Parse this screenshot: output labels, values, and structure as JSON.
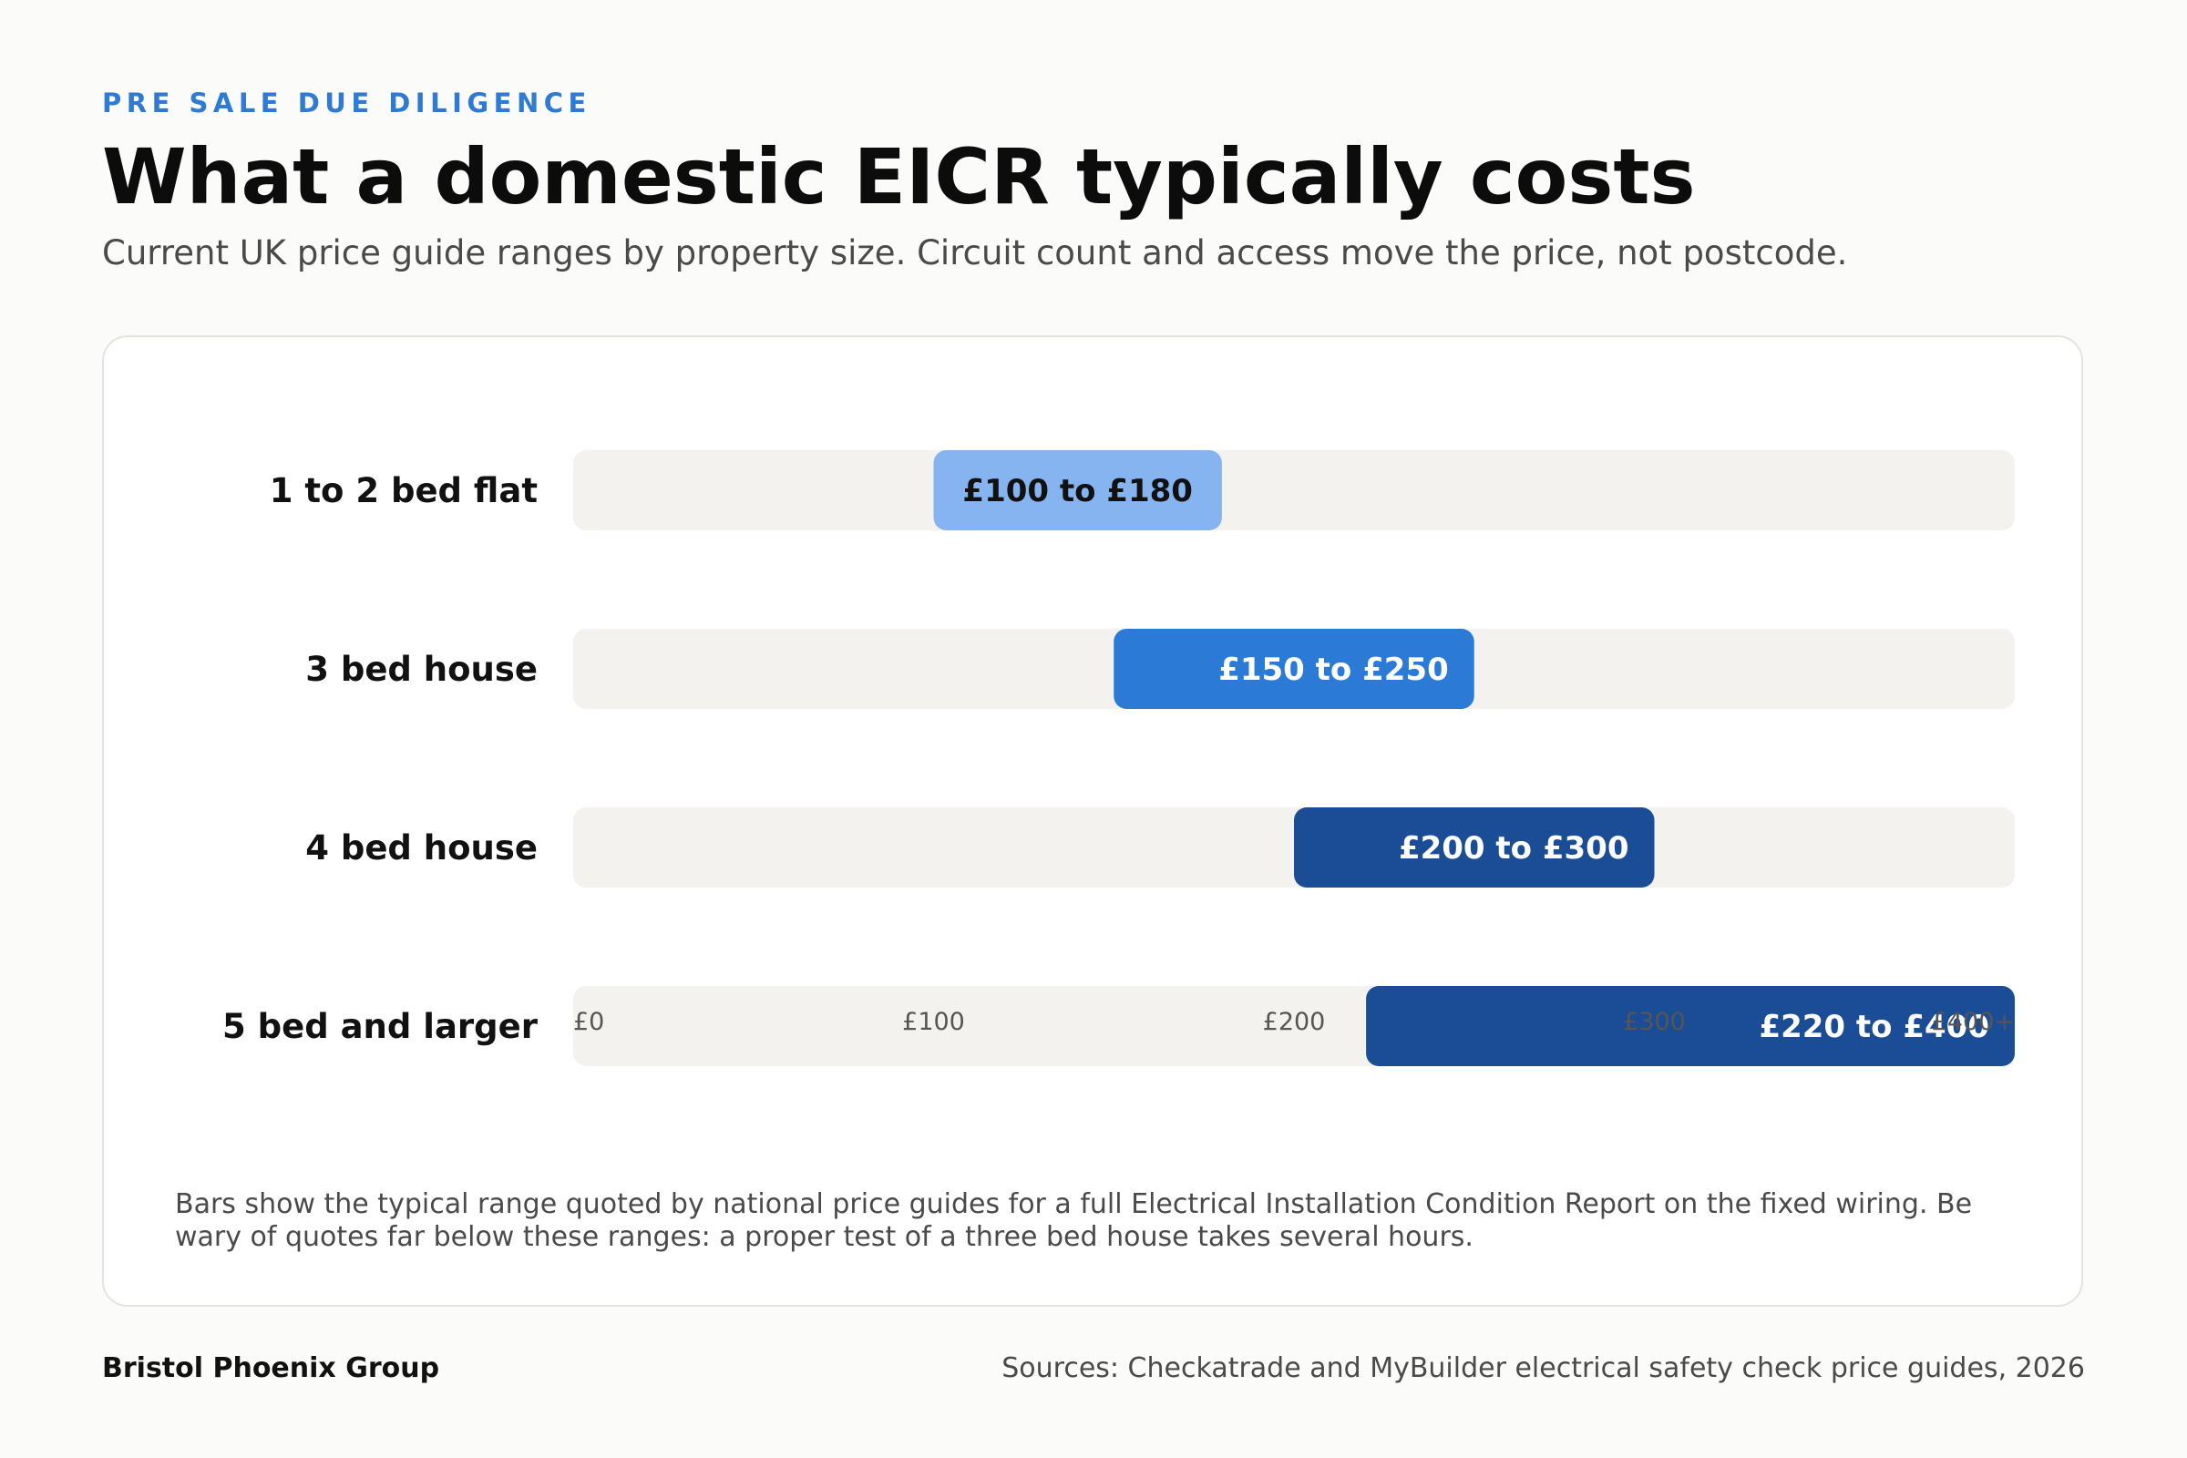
{
  "header": {
    "eyebrow": "PRE SALE DUE DILIGENCE",
    "title": "What a domestic EICR typically costs",
    "subtitle": "Current UK price guide ranges by property size. Circuit count and access move the price, not postcode."
  },
  "chart_data": {
    "type": "bar",
    "orientation": "horizontal-range",
    "title": "",
    "xlabel": "",
    "ylabel": "",
    "xlim": [
      0,
      400
    ],
    "grid": false,
    "categories": [
      "1 to 2 bed flat",
      "3 bed house",
      "4 bed house",
      "5 bed and larger"
    ],
    "series": [
      {
        "values": [
          {
            "low": 100,
            "high": 180,
            "label": "£100 to £180",
            "color": "#86b4f0",
            "label_color": "#111111"
          },
          {
            "low": 150,
            "high": 250,
            "label": "£150 to £250",
            "color": "#2a7ad6",
            "label_color": "#ffffff"
          },
          {
            "low": 200,
            "high": 300,
            "label": "£200 to £300",
            "color": "#1a4d95",
            "label_color": "#ffffff"
          },
          {
            "low": 220,
            "high": 400,
            "label": "£220 to £400",
            "color": "#1a4d95",
            "label_color": "#ffffff"
          }
        ]
      }
    ],
    "x_ticks": [
      {
        "value": 0,
        "label": "£0"
      },
      {
        "value": 100,
        "label": "£100"
      },
      {
        "value": 200,
        "label": "£200"
      },
      {
        "value": 300,
        "label": "£300"
      },
      {
        "value": 400,
        "label": "£400+"
      }
    ],
    "track_color": "#f3f2ef",
    "note": "Bars show the typical range quoted by national price guides for a full Electrical Installation Condition Report on the fixed wiring. Be wary of quotes far below these ranges: a proper test of a three bed house takes several hours."
  },
  "footer": {
    "brand": "Bristol Phoenix Group",
    "sources": "Sources: Checkatrade and MyBuilder electrical safety check price guides, 2026"
  }
}
